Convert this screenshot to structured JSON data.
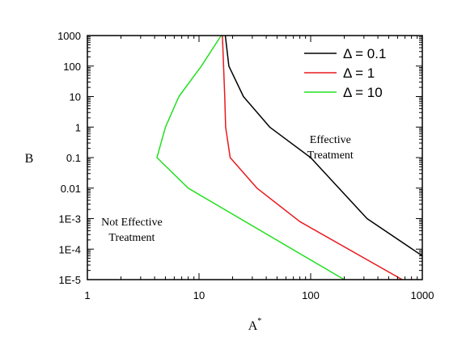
{
  "chart_data": {
    "type": "line",
    "title": "",
    "xlabel": "A",
    "xlabel_superscript": "*",
    "ylabel": "B",
    "x_scale": "log",
    "y_scale": "log",
    "xlim": [
      1,
      1000
    ],
    "ylim": [
      1e-05,
      1000
    ],
    "x_ticks": [
      {
        "value": 1,
        "label": "1"
      },
      {
        "value": 10,
        "label": "10"
      },
      {
        "value": 100,
        "label": "100"
      },
      {
        "value": 1000,
        "label": "1000"
      }
    ],
    "y_ticks": [
      {
        "value": 1000,
        "label": "1000"
      },
      {
        "value": 100,
        "label": "100"
      },
      {
        "value": 10,
        "label": "10"
      },
      {
        "value": 1,
        "label": "1"
      },
      {
        "value": 0.1,
        "label": "0.1"
      },
      {
        "value": 0.01,
        "label": "0.01"
      },
      {
        "value": 0.001,
        "label": "1E-3"
      },
      {
        "value": 0.0001,
        "label": "1E-4"
      },
      {
        "value": 1e-05,
        "label": "1E-5"
      }
    ],
    "grid": false,
    "legend_position": "top-right",
    "series": [
      {
        "name": "Δ = 0.1",
        "color": "#000000",
        "points": [
          [
            17.2,
            1000
          ],
          [
            18.5,
            100
          ],
          [
            25,
            10
          ],
          [
            43,
            1
          ],
          [
            100,
            0.1
          ],
          [
            320,
            0.001
          ],
          [
            1000,
            6e-05
          ]
        ]
      },
      {
        "name": "Δ = 1",
        "color": "#e8191c",
        "points": [
          [
            16.2,
            1000
          ],
          [
            17.0,
            10
          ],
          [
            17.3,
            1
          ],
          [
            19,
            0.1
          ],
          [
            33,
            0.01
          ],
          [
            80,
            0.0008
          ],
          [
            660,
            1e-05
          ]
        ]
      },
      {
        "name": "Δ = 10",
        "color": "#22e01f",
        "points": [
          [
            15.8,
            1000
          ],
          [
            10.5,
            100
          ],
          [
            6.6,
            10
          ],
          [
            5.0,
            1
          ],
          [
            4.2,
            0.1
          ],
          [
            8.0,
            0.01
          ],
          [
            200,
            1e-05
          ]
        ]
      }
    ],
    "annotations": [
      {
        "lines": [
          "Effective",
          "Treatment"
        ],
        "x": 150,
        "y": 0.3
      },
      {
        "lines": [
          "Not Effective",
          "Treatment"
        ],
        "x": 2.5,
        "y": 0.0006
      }
    ]
  }
}
